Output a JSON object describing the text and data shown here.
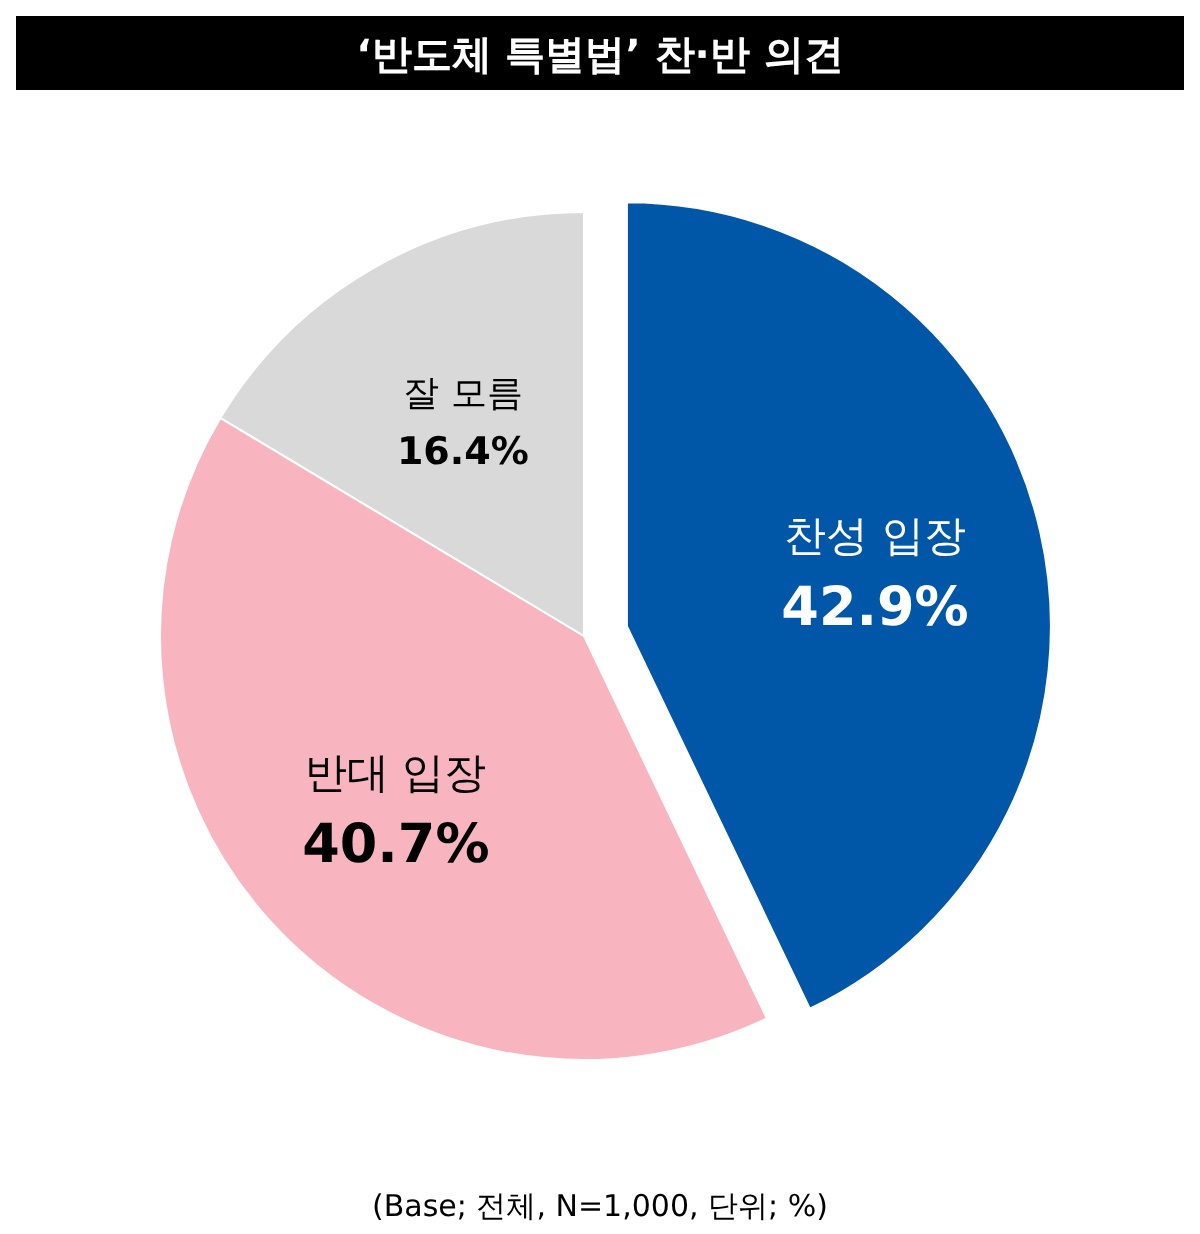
{
  "chart_data": {
    "type": "pie",
    "title": "‘반도체 특별법’ 찬·반 의견",
    "categories": [
      "찬성 입장",
      "반대 입장",
      "잘 모름"
    ],
    "values": [
      42.9,
      40.7,
      16.4
    ],
    "colors": [
      "#0057a8",
      "#f8b5c0",
      "#d9d9d9"
    ],
    "value_labels": [
      "42.9%",
      "40.7%",
      "16.4%"
    ],
    "legend": false,
    "annotations": [
      "(Base; 전체, N=1,000, 단위; %)"
    ]
  }
}
